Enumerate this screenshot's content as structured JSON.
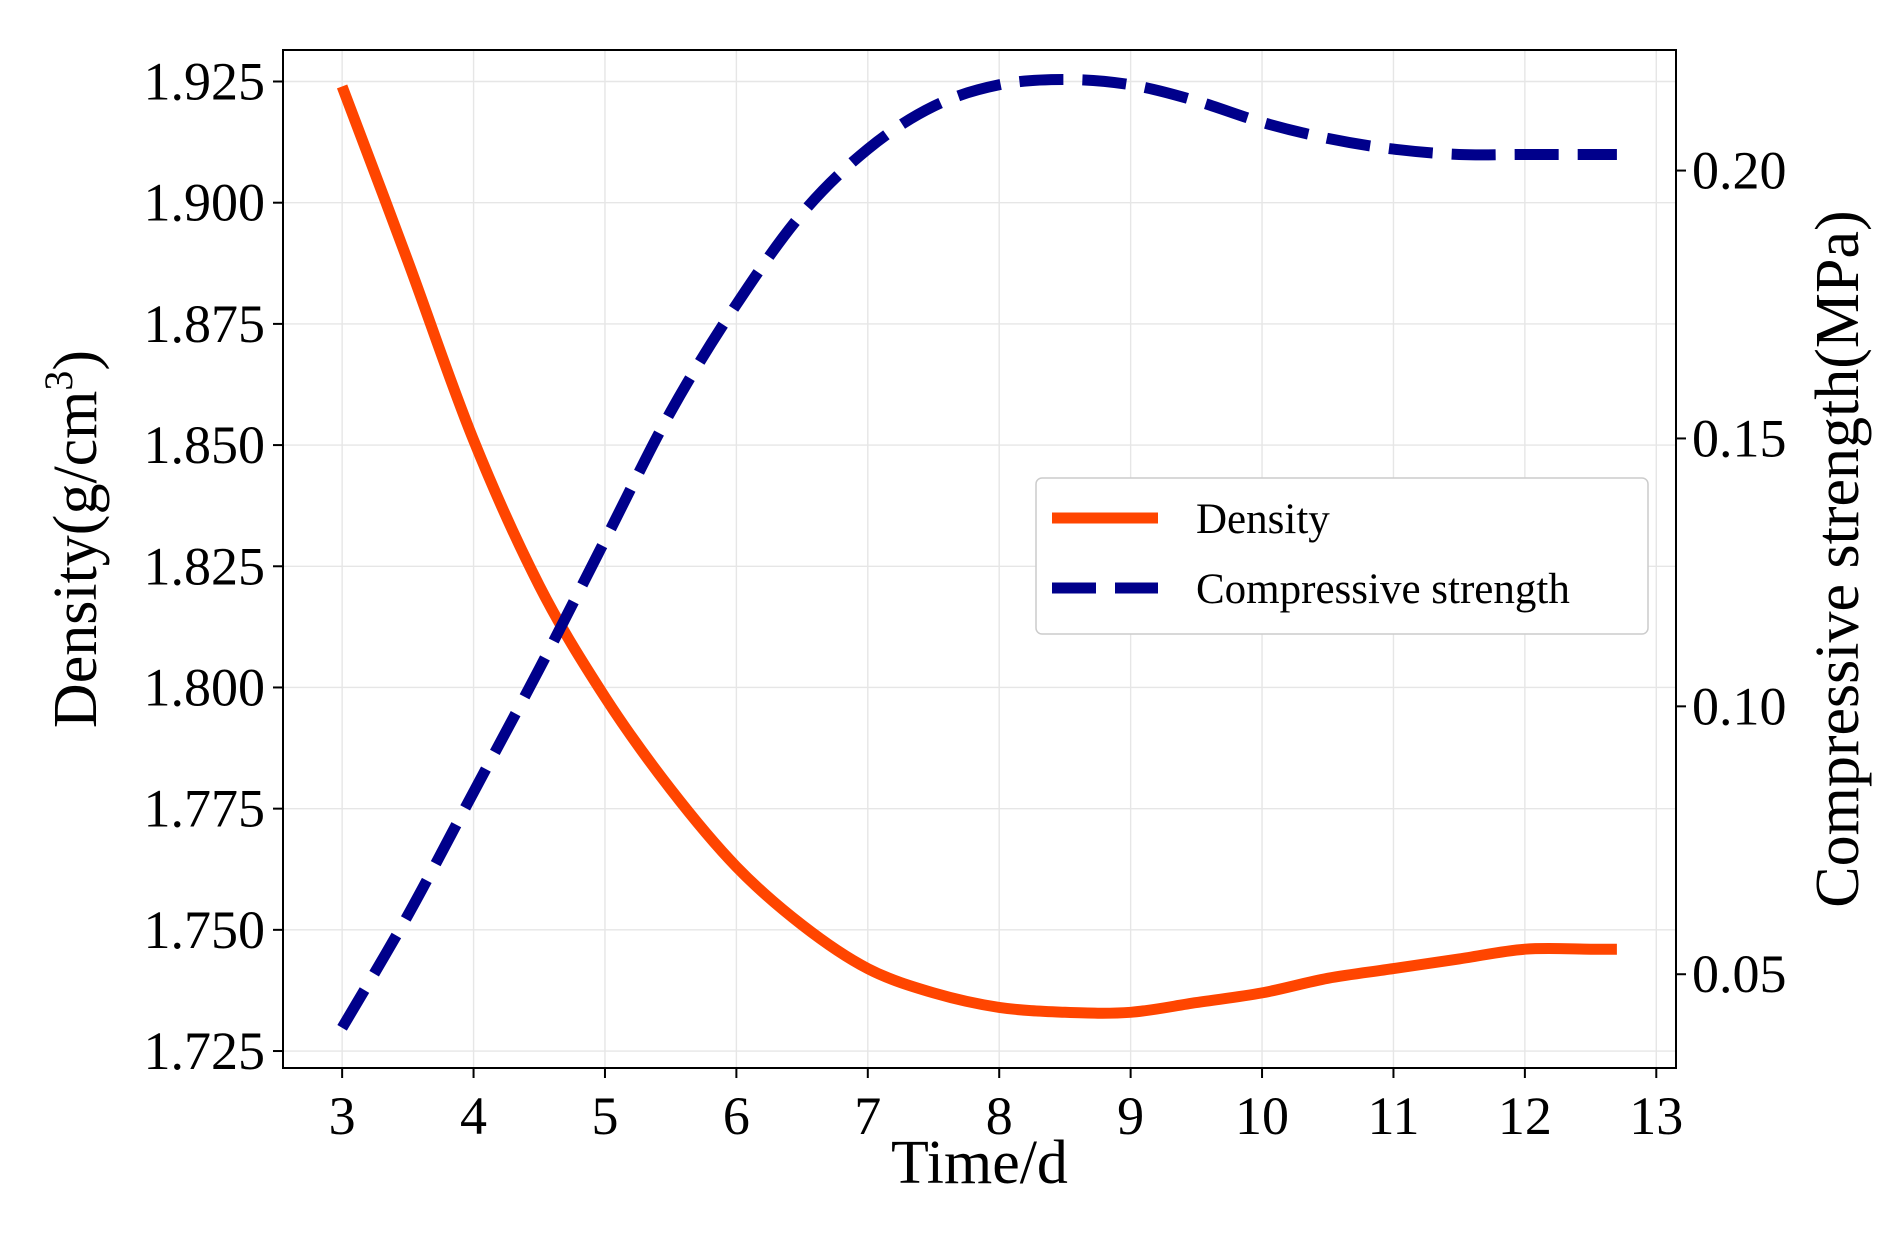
{
  "chart_data": {
    "type": "line",
    "xlabel": "Time/d",
    "ylabel_left": "Density(g/cm",
    "ylabel_left_superscript": "3",
    "ylabel_left_suffix": ")",
    "ylabel_right": "Compressive strength(MPa)",
    "xlim": [
      2.55,
      13.15
    ],
    "ylim_left": [
      1.7215,
      1.9315
    ],
    "ylim_right": [
      0.0325,
      0.2225
    ],
    "grid": true,
    "legend_position": "center-right",
    "x_ticks": [
      3,
      4,
      5,
      6,
      7,
      8,
      9,
      10,
      11,
      12,
      13
    ],
    "x_tick_labels": [
      "3",
      "4",
      "5",
      "6",
      "7",
      "8",
      "9",
      "10",
      "11",
      "12",
      "13"
    ],
    "y_left_ticks": [
      1.725,
      1.75,
      1.775,
      1.8,
      1.825,
      1.85,
      1.875,
      1.9,
      1.925
    ],
    "y_left_tick_labels": [
      "1.725",
      "1.750",
      "1.775",
      "1.800",
      "1.825",
      "1.850",
      "1.875",
      "1.900",
      "1.925"
    ],
    "y_right_ticks": [
      0.05,
      0.1,
      0.15,
      0.2
    ],
    "y_right_tick_labels": [
      "0.05",
      "0.10",
      "0.15",
      "0.20"
    ],
    "series": [
      {
        "name": "Density",
        "axis": "left",
        "color": "#ff4500",
        "style": "solid",
        "x": [
          3.0,
          3.5,
          4.0,
          4.5,
          5.0,
          5.5,
          6.0,
          6.5,
          7.0,
          7.5,
          8.0,
          8.5,
          9.0,
          9.5,
          10.0,
          10.5,
          11.0,
          11.5,
          12.0,
          12.5,
          12.7
        ],
        "values": [
          1.924,
          1.888,
          1.851,
          1.821,
          1.798,
          1.779,
          1.763,
          1.751,
          1.742,
          1.737,
          1.734,
          1.733,
          1.733,
          1.735,
          1.737,
          1.74,
          1.742,
          1.744,
          1.746,
          1.746,
          1.746
        ]
      },
      {
        "name": "Compressive strength",
        "axis": "right",
        "color": "#00008b",
        "style": "dashed",
        "x": [
          3.0,
          3.5,
          4.0,
          4.5,
          5.0,
          5.5,
          6.0,
          6.5,
          7.0,
          7.5,
          8.0,
          8.5,
          9.0,
          9.5,
          10.0,
          10.5,
          11.0,
          11.5,
          12.0,
          12.5,
          12.7
        ],
        "values": [
          0.04,
          0.061,
          0.084,
          0.107,
          0.131,
          0.155,
          0.175,
          0.192,
          0.204,
          0.212,
          0.216,
          0.217,
          0.216,
          0.213,
          0.209,
          0.206,
          0.204,
          0.203,
          0.203,
          0.203,
          0.203
        ]
      }
    ]
  }
}
